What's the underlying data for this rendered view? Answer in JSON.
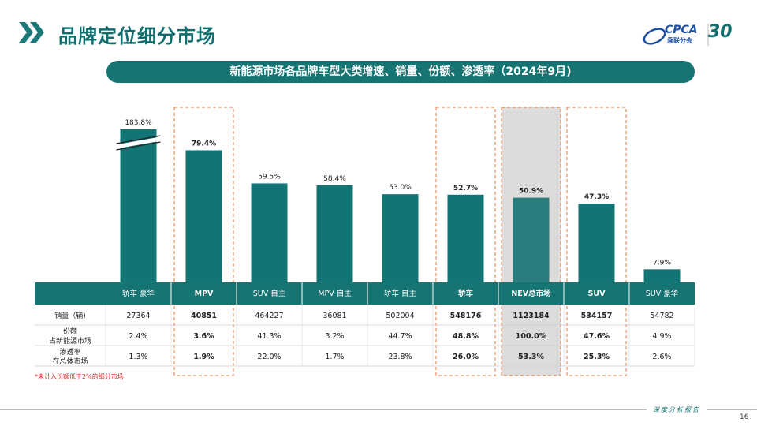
{
  "page_title": "品牌定位细分市场",
  "logo": {
    "brand": "CPCA",
    "sub": "乘联分会",
    "anniv": "30"
  },
  "subtitle": "新能源市场各品牌车型大类增速、销量、份额、渗透率（2024年9月)",
  "footnote": "*未计入份额低于2%的细分市场",
  "footer_tag": "深度分析报告",
  "page_number": "16",
  "colors": {
    "bar": "#127474",
    "nev_bar": "#2a7d7d",
    "header": "#167473",
    "highlight_box": "#e8773a",
    "nev_shade": "#dcdcdc"
  },
  "chart_data": {
    "type": "bar",
    "categories": [
      "轿车 豪华",
      "MPV",
      "SUV 自主",
      "MPV 自主",
      "轿车 自主",
      "轿车",
      "NEV总市场",
      "SUV",
      "SUV 豪华"
    ],
    "values": [
      183.8,
      79.4,
      59.5,
      58.4,
      53.0,
      52.7,
      50.9,
      47.3,
      7.9
    ],
    "value_labels": [
      "183.8%",
      "79.4%",
      "59.5%",
      "58.4%",
      "53.0%",
      "52.7%",
      "50.9%",
      "47.3%",
      "7.9%"
    ],
    "axis_break_category": "轿车 豪华",
    "bold_categories": [
      "MPV",
      "轿车",
      "NEV总市场",
      "SUV"
    ],
    "highlighted_categories": [
      "MPV",
      "轿车",
      "SUV"
    ],
    "shaded_category": "NEV总市场",
    "table": {
      "rows": [
        {
          "label": [
            "销量（辆)"
          ],
          "values": [
            "27364",
            "40851",
            "464227",
            "36081",
            "502004",
            "548176",
            "1123184",
            "534157",
            "54782"
          ]
        },
        {
          "label": [
            "份额",
            "占新能源市场"
          ],
          "values": [
            "2.4%",
            "3.6%",
            "41.3%",
            "3.2%",
            "44.7%",
            "48.8%",
            "100.0%",
            "47.6%",
            "4.9%"
          ]
        },
        {
          "label": [
            "渗透率",
            "在总体市场"
          ],
          "values": [
            "1.3%",
            "1.9%",
            "22.0%",
            "1.7%",
            "23.8%",
            "26.0%",
            "53.3%",
            "25.3%",
            "2.6%"
          ]
        }
      ]
    }
  }
}
